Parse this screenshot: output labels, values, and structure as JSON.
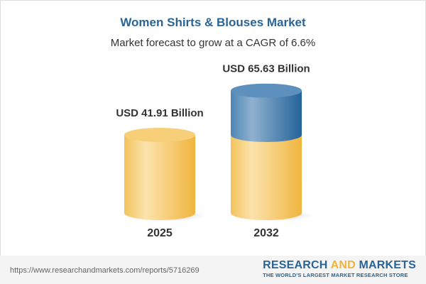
{
  "title": "Women Shirts & Blouses Market",
  "subtitle": "Market forecast to grow at a CAGR of 6.6%",
  "chart_data": {
    "type": "bar",
    "style": "3d-cylinder",
    "categories": [
      "2025",
      "2032"
    ],
    "values": [
      41.91,
      65.63
    ],
    "data_labels": [
      "USD 41.91 Billion",
      "USD 65.63 Billion"
    ],
    "unit": "USD Billion",
    "cagr": "6.6%",
    "colors": {
      "base": "#f5c65a",
      "growth": "#3d78ab"
    }
  },
  "footer": {
    "url": "https://www.researchandmarkets.com/reports/5716269",
    "logo_part1": "RESEARCH ",
    "logo_and": "AND",
    "logo_part2": " MARKETS",
    "logo_tagline": "THE WORLD'S LARGEST MARKET RESEARCH STORE"
  }
}
